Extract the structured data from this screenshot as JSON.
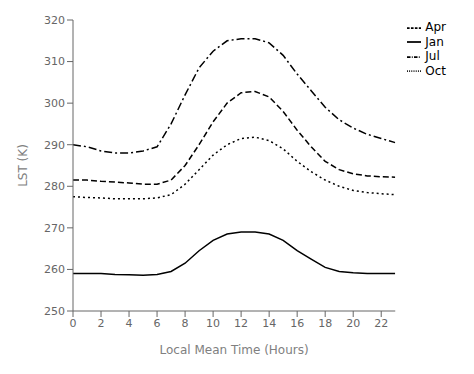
{
  "chart_data": {
    "type": "line",
    "xlabel": "Local Mean Time (Hours)",
    "ylabel": "LST (K)",
    "x": [
      0,
      1,
      2,
      3,
      4,
      5,
      6,
      7,
      8,
      9,
      10,
      11,
      12,
      13,
      14,
      15,
      16,
      17,
      18,
      19,
      20,
      21,
      22,
      23
    ],
    "series": [
      {
        "name": "Jan",
        "color": "#000000",
        "line_style": "solid",
        "values": [
          259.0,
          259.0,
          259.0,
          258.8,
          258.7,
          258.6,
          258.8,
          259.5,
          261.5,
          264.5,
          267.0,
          268.5,
          269.0,
          269.0,
          268.5,
          267.0,
          264.5,
          262.5,
          260.5,
          259.5,
          259.2,
          259.0,
          259.0,
          259.0
        ]
      },
      {
        "name": "Apr",
        "color": "#000000",
        "line_style": "dashed",
        "values": [
          281.5,
          281.5,
          281.2,
          281.0,
          280.8,
          280.5,
          280.5,
          281.5,
          285.0,
          290.0,
          295.5,
          300.0,
          302.5,
          302.8,
          301.5,
          298.0,
          293.5,
          289.5,
          286.0,
          284.0,
          283.0,
          282.5,
          282.3,
          282.2
        ]
      },
      {
        "name": "Jul",
        "color": "#000000",
        "line_style": "dashdot",
        "values": [
          290.0,
          289.5,
          288.5,
          288.0,
          288.0,
          288.5,
          289.5,
          295.0,
          302.0,
          308.5,
          312.5,
          315.0,
          315.5,
          315.5,
          314.5,
          311.5,
          307.0,
          303.0,
          299.0,
          296.0,
          294.0,
          292.5,
          291.5,
          290.5
        ]
      },
      {
        "name": "Oct",
        "color": "#000000",
        "line_style": "dotted",
        "values": [
          277.5,
          277.3,
          277.2,
          277.0,
          277.0,
          277.0,
          277.2,
          278.0,
          280.5,
          284.0,
          287.5,
          290.0,
          291.5,
          291.8,
          291.0,
          289.0,
          286.0,
          283.5,
          281.5,
          280.0,
          279.0,
          278.5,
          278.2,
          278.0
        ]
      }
    ],
    "xlim": [
      0,
      23
    ],
    "ylim": [
      250,
      320
    ],
    "xticks": [
      0,
      2,
      4,
      6,
      8,
      10,
      12,
      14,
      16,
      18,
      20,
      22
    ],
    "yticks": [
      250,
      260,
      270,
      280,
      290,
      300,
      310,
      320
    ],
    "grid": false,
    "legend": "upper right"
  }
}
